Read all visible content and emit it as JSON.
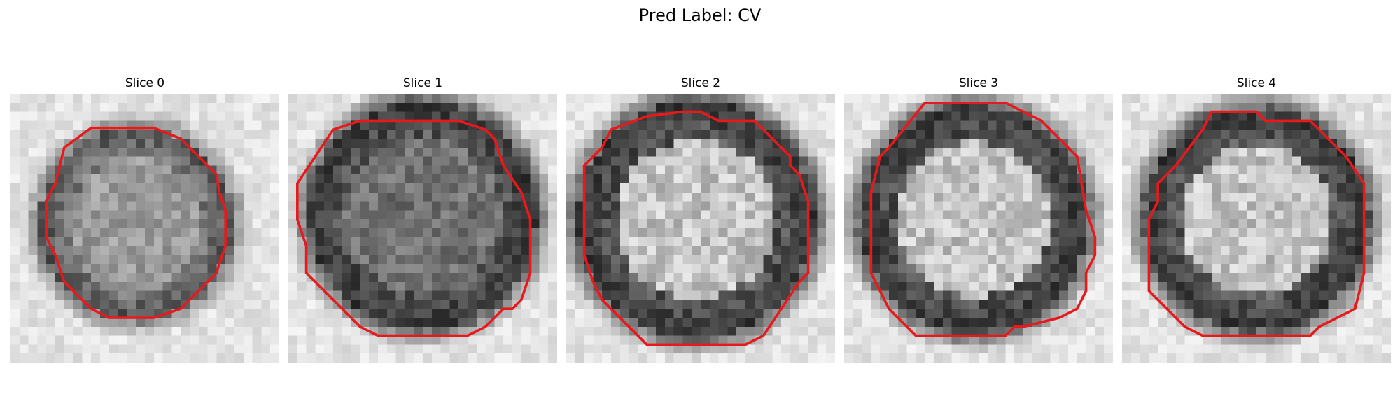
{
  "figure": {
    "suptitle": "Pred Label: CV"
  },
  "panels": [
    {
      "title": "Slice 0",
      "interior": "gray",
      "rim": "weak",
      "contour_color": "#e8191c"
    },
    {
      "title": "Slice 1",
      "interior": "dark",
      "rim": "dark",
      "contour_color": "#e8191c"
    },
    {
      "title": "Slice 2",
      "interior": "light",
      "rim": "dark",
      "contour_color": "#e8191c"
    },
    {
      "title": "Slice 3",
      "interior": "light",
      "rim": "dark",
      "contour_color": "#e8191c"
    },
    {
      "title": "Slice 4",
      "interior": "light",
      "rim": "dark",
      "contour_color": "#e8191c"
    }
  ]
}
